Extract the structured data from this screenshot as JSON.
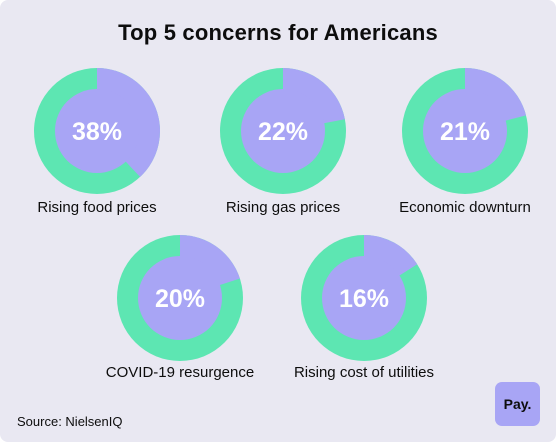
{
  "title": "Top 5 concerns for Americans",
  "source": "Source: NielsenIQ",
  "logo_text": "Pay.",
  "colors": {
    "background": "#e9e8f2",
    "ring": "#5de6b2",
    "fill": "#a8a5f5",
    "text": "#0d0d0d",
    "value_text": "#ffffff"
  },
  "chart_data": [
    {
      "type": "pie",
      "label": "Rising food prices",
      "value": 38,
      "value_label": "38%"
    },
    {
      "type": "pie",
      "label": "Rising gas prices",
      "value": 22,
      "value_label": "22%"
    },
    {
      "type": "pie",
      "label": "Economic downturn",
      "value": 21,
      "value_label": "21%"
    },
    {
      "type": "pie",
      "label": "COVID-19 resurgence",
      "value": 20,
      "value_label": "20%"
    },
    {
      "type": "pie",
      "label": "Rising cost of utilities",
      "value": 16,
      "value_label": "16%"
    }
  ]
}
